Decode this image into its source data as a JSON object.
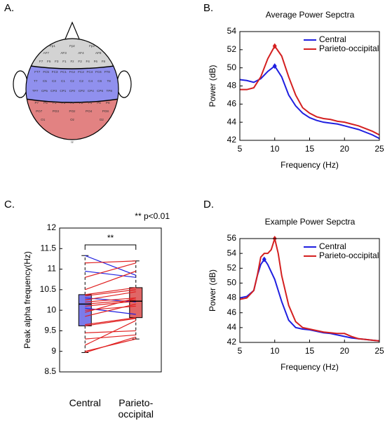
{
  "head_diagram": {
    "label": "A.",
    "electrode_rows": [
      [
        "Fp1",
        "Fpz",
        "Fp2"
      ],
      [
        "AF7",
        "AF3",
        "AF4",
        "AF8"
      ],
      [
        "F7",
        "F5",
        "F3",
        "F1",
        "Fz",
        "F2",
        "F4",
        "F6",
        "F8"
      ],
      [
        "FT7",
        "FC5",
        "FC3",
        "FC1",
        "FCz",
        "FC2",
        "FC4",
        "FC6",
        "FT8"
      ],
      [
        "T7",
        "C5",
        "C3",
        "C1",
        "Cz",
        "C2",
        "C4",
        "C6",
        "T8"
      ],
      [
        "TP7",
        "CP5",
        "CP3",
        "CP1",
        "CPz",
        "CP2",
        "CP4",
        "CP6",
        "TP8"
      ],
      [
        "P7",
        "P5",
        "P3",
        "P1",
        "Pz",
        "P2",
        "P4",
        "P6",
        "P8"
      ],
      [
        "PO7",
        "PO3",
        "POz",
        "PO4",
        "PO8"
      ],
      [
        "O1",
        "Oz",
        "O2"
      ],
      [
        "Iz"
      ]
    ]
  },
  "chart_data": [
    {
      "type": "line",
      "label": "B.",
      "title": "Average Power Sepctra",
      "x_label": "Frequency (Hz)",
      "y_label": "Power (dB)",
      "x": [
        5,
        6,
        7,
        8,
        9,
        10,
        11,
        12,
        13,
        14,
        15,
        16,
        17,
        18,
        19,
        20,
        21,
        22,
        23,
        24,
        25
      ],
      "series": [
        {
          "name": "Central",
          "color": "#1f1fe0",
          "values": [
            48.7,
            48.6,
            48.4,
            48.8,
            49.6,
            50.2,
            49.0,
            47.0,
            45.8,
            45.0,
            44.5,
            44.2,
            44.0,
            43.9,
            43.8,
            43.6,
            43.4,
            43.2,
            42.9,
            42.6,
            42.2
          ]
        },
        {
          "name": "Parieto-occipital",
          "color": "#d42020",
          "values": [
            47.6,
            47.6,
            47.8,
            49.0,
            51.0,
            52.4,
            51.3,
            49.0,
            47.0,
            45.6,
            45.0,
            44.6,
            44.4,
            44.3,
            44.1,
            44.0,
            43.8,
            43.6,
            43.3,
            43.0,
            42.6
          ]
        }
      ],
      "xlim": [
        5,
        25
      ],
      "xticks": [
        5,
        10,
        15,
        20,
        25
      ],
      "ylim": [
        42,
        54
      ],
      "yticks": [
        42,
        44,
        46,
        48,
        50,
        52,
        54
      ],
      "legend": "upper right"
    },
    {
      "type": "box",
      "label": "C.",
      "annotation": "** p<0.01",
      "significance": "**",
      "y_label": "Peak alpha frequency(Hz)",
      "categories": [
        "Central",
        "Parieto-occipital"
      ],
      "boxes": [
        {
          "color": "#7b7bea",
          "min": 8.97,
          "q1": 9.62,
          "median": 10.15,
          "q3": 10.38,
          "max": 11.33
        },
        {
          "color": "#e06666",
          "min": 9.3,
          "q1": 9.82,
          "median": 10.22,
          "q3": 10.55,
          "max": 11.2
        }
      ],
      "pairs": [
        [
          11.33,
          10.85
        ],
        [
          11.15,
          11.2
        ],
        [
          10.95,
          10.8
        ],
        [
          10.8,
          11.15
        ],
        [
          10.5,
          10.95
        ],
        [
          10.38,
          10.55
        ],
        [
          10.35,
          10.5
        ],
        [
          10.3,
          10.2
        ],
        [
          10.25,
          10.45
        ],
        [
          10.2,
          10.3
        ],
        [
          10.15,
          10.25
        ],
        [
          10.1,
          10.22
        ],
        [
          10.05,
          9.9
        ],
        [
          10.0,
          10.1
        ],
        [
          9.95,
          10.3
        ],
        [
          9.85,
          10.15
        ],
        [
          9.65,
          9.82
        ],
        [
          9.62,
          9.8
        ],
        [
          9.45,
          9.5
        ],
        [
          9.3,
          9.4
        ],
        [
          9.15,
          9.75
        ],
        [
          9.0,
          9.3
        ],
        [
          8.97,
          9.35
        ]
      ],
      "increase_color": "#e02020",
      "decrease_color": "#2020e0",
      "ylim": [
        8.5,
        12
      ],
      "yticks": [
        8.5,
        9,
        9.5,
        10,
        10.5,
        11,
        11.5,
        12
      ]
    },
    {
      "type": "line",
      "label": "D.",
      "title": "Example Power Sepctra",
      "x_label": "Frequency (Hz)",
      "y_label": "Power (dB)",
      "x": [
        5,
        6,
        7,
        7.5,
        8,
        8.5,
        9,
        9.5,
        10,
        10.5,
        11,
        12,
        13,
        14,
        15,
        16,
        17,
        18,
        19,
        20,
        21,
        22,
        23,
        24,
        25
      ],
      "series": [
        {
          "name": "Central",
          "color": "#1f1fe0",
          "values": [
            48,
            48.2,
            49,
            51,
            52.5,
            53.2,
            52.5,
            51.5,
            50.5,
            49,
            47.5,
            45,
            44,
            43.8,
            43.7,
            43.5,
            43.3,
            43.2,
            43,
            42.8,
            42.6,
            42.5,
            42.4,
            42.3,
            42.2
          ]
        },
        {
          "name": "Parieto-occipital",
          "color": "#d42020",
          "values": [
            47.8,
            48,
            49,
            51,
            53.5,
            54,
            54,
            54.5,
            56,
            54,
            51,
            47,
            44.8,
            44,
            43.8,
            43.6,
            43.4,
            43.3,
            43.2,
            43.2,
            42.8,
            42.5,
            42.4,
            42.3,
            42.2
          ]
        }
      ],
      "xlim": [
        5,
        25
      ],
      "xticks": [
        5,
        10,
        15,
        20,
        25
      ],
      "ylim": [
        42,
        56
      ],
      "yticks": [
        42,
        44,
        46,
        48,
        50,
        52,
        54,
        56
      ],
      "legend": "upper right"
    }
  ]
}
